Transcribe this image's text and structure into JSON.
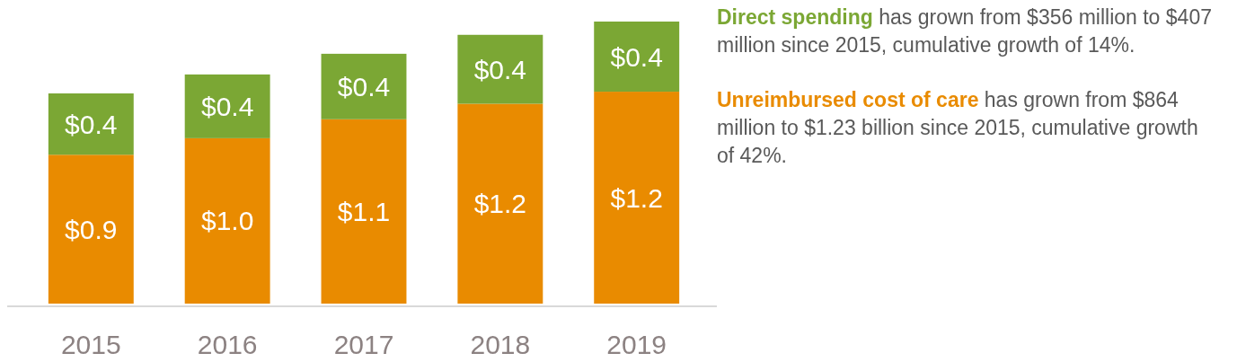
{
  "chart_data": {
    "type": "bar",
    "stacked": true,
    "categories": [
      "2015",
      "2016",
      "2017",
      "2018",
      "2019"
    ],
    "series": [
      {
        "name": "Unreimbursed cost of care",
        "color": "#e98b00",
        "values": [
          0.864,
          0.96,
          1.07,
          1.16,
          1.23
        ],
        "value_labels": [
          "$0.9",
          "$1.0",
          "$1.1",
          "$1.2",
          "$1.2"
        ]
      },
      {
        "name": "Direct spending",
        "color": "#7ba734",
        "values": [
          0.356,
          0.37,
          0.38,
          0.4,
          0.407
        ],
        "value_labels": [
          "$0.4",
          "$0.4",
          "$0.4",
          "$0.4",
          "$0.4"
        ]
      }
    ],
    "annotations": [
      " has grown from $356 million to $407 million since 2015, cumulative growth of 14%.",
      " has grown from $864 million to $1.23 billion since 2015, cumulative growth of 42%."
    ]
  }
}
